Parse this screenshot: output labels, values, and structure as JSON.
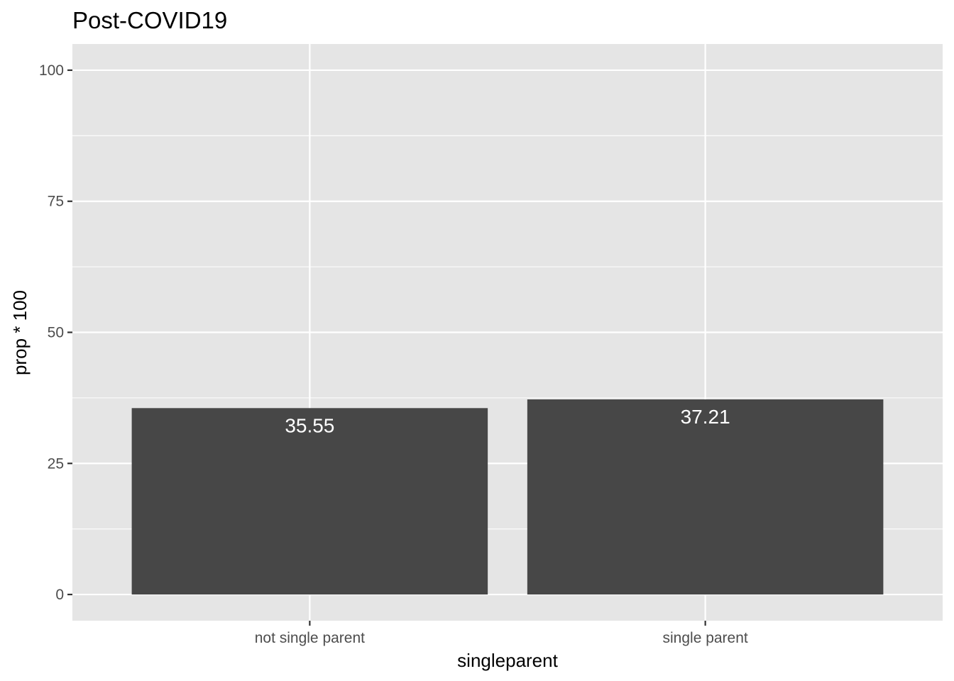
{
  "chart_data": {
    "type": "bar",
    "title": "Post-COVID19",
    "xlabel": "singleparent",
    "ylabel": "prop * 100",
    "categories": [
      "not single parent",
      "single parent"
    ],
    "values": [
      35.55,
      37.21
    ],
    "value_labels": [
      "35.55",
      "37.21"
    ],
    "ylim": [
      -5,
      105
    ],
    "yticks": [
      0,
      25,
      50,
      75,
      100
    ],
    "ytick_labels": [
      "0",
      "25",
      "50",
      "75",
      "100"
    ],
    "grid": true,
    "legend": "none",
    "colors": {
      "bar": "#474747",
      "panel": "#e5e5e5",
      "grid": "#ffffff",
      "bar_label": "#ffffff"
    }
  }
}
